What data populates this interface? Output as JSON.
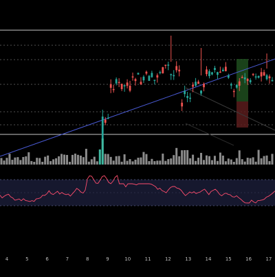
{
  "chart_data": {
    "type": "candlestick",
    "x_tick_labels": [
      "4",
      "5",
      "6",
      "7",
      "8",
      "9",
      "10",
      "11",
      "12",
      "13",
      "14",
      "15",
      "16",
      "17"
    ],
    "price_panel": {
      "grid": "horizontal-dotted",
      "solid_level_lines": true,
      "trendline": true,
      "highlight_boxes": true
    },
    "volume_panel": {
      "bar_color": "#8c8c8c",
      "highlight_color": "#3fb8a0"
    },
    "rsi_panel": {
      "line_color": "#ff4d6d",
      "band_fill": "#16182e",
      "band_line_color": "#5a5f8a"
    },
    "colors": {
      "background": "#000000",
      "up_candle": "#26a69a",
      "down_candle": "#ef5350",
      "grid": "#6e6e6e",
      "level_line": "#c8c8c8",
      "trendline": "#4a5bd6",
      "axis_text": "#bdbdbd"
    }
  }
}
